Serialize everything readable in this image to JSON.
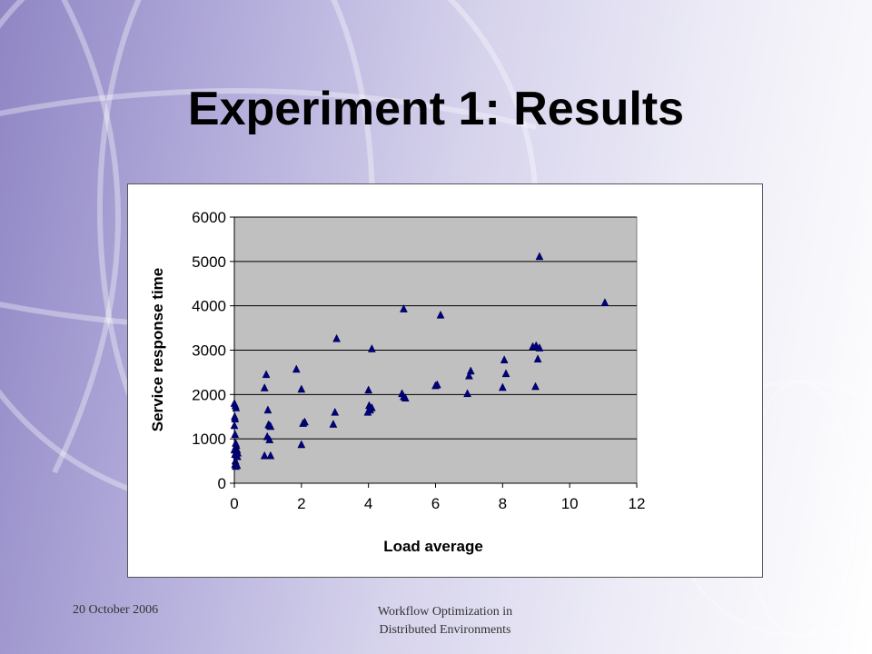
{
  "slide": {
    "title": "Experiment 1: Results",
    "footer_date": "20 October 2006",
    "footer_center_line1": "Workflow Optimization in",
    "footer_center_line2": "Distributed Environments"
  },
  "chart_data": {
    "type": "scatter",
    "title": "",
    "xlabel": "Load average",
    "ylabel": "Service response time",
    "xlim": [
      0,
      12
    ],
    "ylim": [
      0,
      6000
    ],
    "xticks": [
      0,
      2,
      4,
      6,
      8,
      10,
      12
    ],
    "yticks": [
      0,
      1000,
      2000,
      3000,
      4000,
      5000,
      6000
    ],
    "grid": "horizontal",
    "legend": "none",
    "colors": {
      "marker": "#000080",
      "plot_bg": "#c0c0c0",
      "gridline": "#000000"
    },
    "marker": "triangle",
    "points": [
      [
        0,
        1800
      ],
      [
        0.03,
        1750
      ],
      [
        0.05,
        1700
      ],
      [
        0.01,
        1500
      ],
      [
        0.02,
        1450
      ],
      [
        0,
        1300
      ],
      [
        0.02,
        1100
      ],
      [
        0.04,
        900
      ],
      [
        0.06,
        850
      ],
      [
        0.03,
        800
      ],
      [
        0.08,
        750
      ],
      [
        0,
        750
      ],
      [
        0.05,
        700
      ],
      [
        0.1,
        680
      ],
      [
        0.02,
        650
      ],
      [
        0.07,
        620
      ],
      [
        0.09,
        600
      ],
      [
        0.03,
        500
      ],
      [
        0.05,
        450
      ],
      [
        0.02,
        420
      ],
      [
        0.08,
        400
      ],
      [
        0.04,
        380
      ],
      [
        0.95,
        2450
      ],
      [
        0.9,
        2150
      ],
      [
        1.0,
        1650
      ],
      [
        1.02,
        1320
      ],
      [
        1.05,
        1300
      ],
      [
        1.08,
        1280
      ],
      [
        0.98,
        1050
      ],
      [
        1.05,
        980
      ],
      [
        0.9,
        620
      ],
      [
        1.08,
        620
      ],
      [
        1.85,
        2570
      ],
      [
        2.0,
        2120
      ],
      [
        2.05,
        1350
      ],
      [
        2.1,
        1380
      ],
      [
        2.0,
        870
      ],
      [
        3.05,
        3260
      ],
      [
        2.95,
        1330
      ],
      [
        3.0,
        1600
      ],
      [
        4.1,
        3030
      ],
      [
        4.0,
        2100
      ],
      [
        4.02,
        1750
      ],
      [
        4.1,
        1700
      ],
      [
        4.05,
        1650
      ],
      [
        3.98,
        1600
      ],
      [
        5.05,
        3930
      ],
      [
        5.0,
        2020
      ],
      [
        5.05,
        1950
      ],
      [
        5.1,
        1920
      ],
      [
        6.15,
        3790
      ],
      [
        6.0,
        2200
      ],
      [
        6.05,
        2220
      ],
      [
        7.05,
        2530
      ],
      [
        7.0,
        2420
      ],
      [
        6.95,
        2020
      ],
      [
        8.05,
        2780
      ],
      [
        8.1,
        2470
      ],
      [
        8.0,
        2160
      ],
      [
        9.1,
        5110
      ],
      [
        8.9,
        3080
      ],
      [
        9.0,
        3100
      ],
      [
        9.1,
        3050
      ],
      [
        9.05,
        2800
      ],
      [
        8.98,
        2180
      ],
      [
        11.05,
        4070
      ]
    ]
  }
}
